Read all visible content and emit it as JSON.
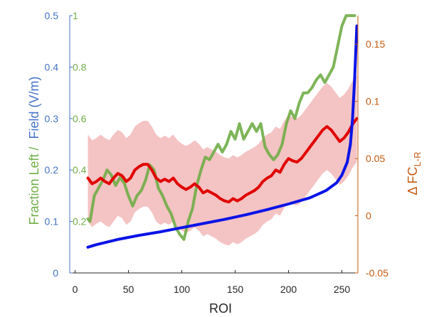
{
  "chart_data": {
    "type": "line",
    "xlabel": "ROI",
    "xlim": [
      -5,
      265
    ],
    "xticks": [
      0,
      50,
      100,
      150,
      200,
      250
    ],
    "left_outer_axis": {
      "ylim": [
        0,
        0.5
      ],
      "ticks": [
        "0",
        "0.1",
        "0.2",
        "0.3",
        "0.4",
        "0.5"
      ],
      "label": "Field  (V/m)",
      "color": "#4472c4"
    },
    "left_inner_axis": {
      "ylim": [
        0,
        1
      ],
      "ticks": [
        "0.2",
        "0.4",
        "0.6",
        "0.8",
        "1"
      ],
      "label": "Fraction Left /",
      "color": "#70ad47"
    },
    "right_axis": {
      "ylim": [
        -0.05,
        0.175
      ],
      "ticks": [
        "-0.05",
        "0",
        "0.05",
        "0.1",
        "0.15"
      ],
      "label": "Δ FC",
      "label_sub": "L-R",
      "color": "#c55a11"
    },
    "series": [
      {
        "name": "Field",
        "axis": "left_outer",
        "color": "#0a14e6",
        "x": [
          12,
          20,
          40,
          60,
          80,
          100,
          120,
          140,
          160,
          180,
          200,
          220,
          235,
          245,
          250,
          255,
          258,
          260,
          262,
          264
        ],
        "y": [
          0.05,
          0.055,
          0.065,
          0.073,
          0.08,
          0.088,
          0.096,
          0.104,
          0.113,
          0.123,
          0.134,
          0.146,
          0.16,
          0.175,
          0.19,
          0.215,
          0.25,
          0.3,
          0.38,
          0.48
        ]
      },
      {
        "name": "Fraction Left",
        "axis": "left_inner",
        "color": "#70ad47",
        "x": [
          12,
          14,
          18,
          22,
          26,
          30,
          34,
          38,
          42,
          46,
          50,
          54,
          58,
          62,
          66,
          70,
          74,
          78,
          82,
          86,
          90,
          94,
          98,
          102,
          106,
          110,
          114,
          118,
          122,
          126,
          130,
          134,
          138,
          142,
          146,
          150,
          154,
          158,
          162,
          166,
          170,
          174,
          178,
          182,
          186,
          190,
          194,
          198,
          202,
          206,
          210,
          214,
          218,
          222,
          226,
          230,
          234,
          238,
          242,
          246,
          250,
          254,
          258,
          262
        ],
        "y": [
          0.21,
          0.2,
          0.3,
          0.33,
          0.36,
          0.4,
          0.38,
          0.34,
          0.37,
          0.35,
          0.3,
          0.26,
          0.3,
          0.32,
          0.36,
          0.42,
          0.4,
          0.33,
          0.3,
          0.26,
          0.23,
          0.18,
          0.15,
          0.13,
          0.2,
          0.25,
          0.34,
          0.4,
          0.45,
          0.44,
          0.47,
          0.5,
          0.47,
          0.5,
          0.55,
          0.52,
          0.58,
          0.52,
          0.55,
          0.58,
          0.55,
          0.58,
          0.49,
          0.46,
          0.44,
          0.46,
          0.5,
          0.58,
          0.63,
          0.6,
          0.66,
          0.7,
          0.7,
          0.72,
          0.75,
          0.77,
          0.74,
          0.77,
          0.8,
          0.88,
          0.96,
          1.0,
          1.0,
          1.0
        ]
      },
      {
        "name": "Δ FC L-R",
        "axis": "right",
        "color": "#e00000",
        "x": [
          12,
          16,
          20,
          24,
          28,
          32,
          36,
          40,
          44,
          48,
          52,
          56,
          60,
          64,
          68,
          72,
          76,
          80,
          84,
          88,
          92,
          96,
          100,
          104,
          108,
          112,
          116,
          120,
          124,
          128,
          132,
          136,
          140,
          144,
          148,
          152,
          156,
          160,
          164,
          168,
          172,
          176,
          180,
          184,
          188,
          192,
          196,
          200,
          204,
          208,
          212,
          216,
          220,
          224,
          228,
          232,
          236,
          240,
          244,
          248,
          252,
          256,
          260,
          264
        ],
        "y": [
          0.033,
          0.028,
          0.03,
          0.033,
          0.03,
          0.028,
          0.033,
          0.037,
          0.035,
          0.03,
          0.033,
          0.04,
          0.043,
          0.045,
          0.045,
          0.04,
          0.033,
          0.03,
          0.032,
          0.03,
          0.033,
          0.028,
          0.025,
          0.023,
          0.025,
          0.028,
          0.025,
          0.02,
          0.022,
          0.02,
          0.018,
          0.015,
          0.013,
          0.012,
          0.015,
          0.013,
          0.015,
          0.018,
          0.02,
          0.022,
          0.025,
          0.03,
          0.033,
          0.035,
          0.04,
          0.038,
          0.045,
          0.05,
          0.048,
          0.047,
          0.05,
          0.055,
          0.06,
          0.065,
          0.07,
          0.075,
          0.078,
          0.075,
          0.07,
          0.065,
          0.068,
          0.073,
          0.08,
          0.085
        ]
      }
    ],
    "band": {
      "series": "Δ FC L-R",
      "axis": "right",
      "color": "#f2b8b8",
      "x": [
        12,
        16,
        20,
        24,
        28,
        32,
        36,
        40,
        44,
        48,
        52,
        56,
        60,
        64,
        68,
        72,
        76,
        80,
        84,
        88,
        92,
        96,
        100,
        104,
        108,
        112,
        116,
        120,
        124,
        128,
        132,
        136,
        140,
        144,
        148,
        152,
        156,
        160,
        164,
        168,
        172,
        176,
        180,
        184,
        188,
        192,
        196,
        200,
        204,
        208,
        212,
        216,
        220,
        224,
        228,
        232,
        236,
        240,
        244,
        248,
        252,
        256,
        260,
        264
      ],
      "lower": [
        -0.005,
        -0.01,
        -0.007,
        -0.005,
        -0.008,
        -0.01,
        -0.005,
        0.0,
        -0.002,
        -0.008,
        -0.005,
        0.003,
        0.006,
        0.008,
        0.008,
        0.003,
        -0.005,
        -0.008,
        -0.006,
        -0.008,
        -0.005,
        -0.01,
        -0.013,
        -0.015,
        -0.013,
        -0.01,
        -0.013,
        -0.018,
        -0.016,
        -0.018,
        -0.02,
        -0.023,
        -0.025,
        -0.026,
        -0.023,
        -0.025,
        -0.023,
        -0.02,
        -0.018,
        -0.016,
        -0.013,
        -0.008,
        -0.005,
        -0.003,
        0.002,
        0.0,
        0.007,
        0.012,
        0.01,
        0.009,
        0.012,
        0.017,
        0.022,
        0.027,
        0.032,
        0.037,
        0.04,
        0.037,
        0.032,
        0.027,
        0.03,
        0.035,
        0.042,
        0.047
      ],
      "upper": [
        0.071,
        0.066,
        0.068,
        0.071,
        0.068,
        0.066,
        0.071,
        0.075,
        0.073,
        0.068,
        0.071,
        0.078,
        0.081,
        0.083,
        0.083,
        0.078,
        0.071,
        0.068,
        0.07,
        0.068,
        0.071,
        0.066,
        0.063,
        0.061,
        0.063,
        0.066,
        0.063,
        0.058,
        0.06,
        0.058,
        0.056,
        0.053,
        0.051,
        0.05,
        0.053,
        0.051,
        0.053,
        0.056,
        0.058,
        0.06,
        0.063,
        0.068,
        0.071,
        0.073,
        0.078,
        0.076,
        0.083,
        0.088,
        0.086,
        0.085,
        0.088,
        0.093,
        0.098,
        0.103,
        0.108,
        0.113,
        0.116,
        0.113,
        0.108,
        0.103,
        0.106,
        0.111,
        0.118,
        0.123
      ]
    }
  }
}
